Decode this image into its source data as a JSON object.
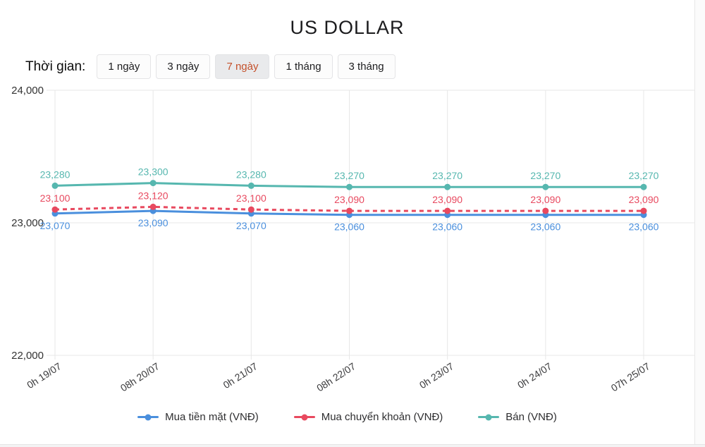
{
  "page": {
    "title": "US DOLLAR"
  },
  "filters": {
    "label": "Thời gian:",
    "active_color": "#c4512c",
    "buttons": [
      {
        "label": "1 ngày",
        "active": false
      },
      {
        "label": "3 ngày",
        "active": false
      },
      {
        "label": "7 ngày",
        "active": true
      },
      {
        "label": "1 tháng",
        "active": false
      },
      {
        "label": "3 tháng",
        "active": false
      }
    ]
  },
  "chart_data": {
    "type": "line",
    "title": "US DOLLAR",
    "x": [
      "0h 19/07",
      "08h 20/07",
      "0h 21/07",
      "08h 22/07",
      "0h 23/07",
      "0h 24/07",
      "07h 25/07"
    ],
    "series": [
      {
        "name": "Mua tiền mặt (VNĐ)",
        "color": "#4a8fdd",
        "dash": "solid",
        "label_position": "below",
        "values": [
          23070,
          23090,
          23070,
          23060,
          23060,
          23060,
          23060
        ]
      },
      {
        "name": "Mua chuyển khoản (VNĐ)",
        "color": "#e8495f",
        "dash": "dashed",
        "label_position": "above",
        "values": [
          23100,
          23120,
          23100,
          23090,
          23090,
          23090,
          23090
        ]
      },
      {
        "name": "Bán (VNĐ)",
        "color": "#56b7af",
        "dash": "solid",
        "label_position": "above",
        "values": [
          23280,
          23300,
          23280,
          23270,
          23270,
          23270,
          23270
        ]
      }
    ],
    "ylim": [
      22000,
      24000
    ],
    "yticks": [
      24000,
      23000,
      22000
    ],
    "grid": true,
    "legend_position": "bottom",
    "grid_color": "#e7e7e7",
    "axis_text_color": "#3a3a3c"
  }
}
